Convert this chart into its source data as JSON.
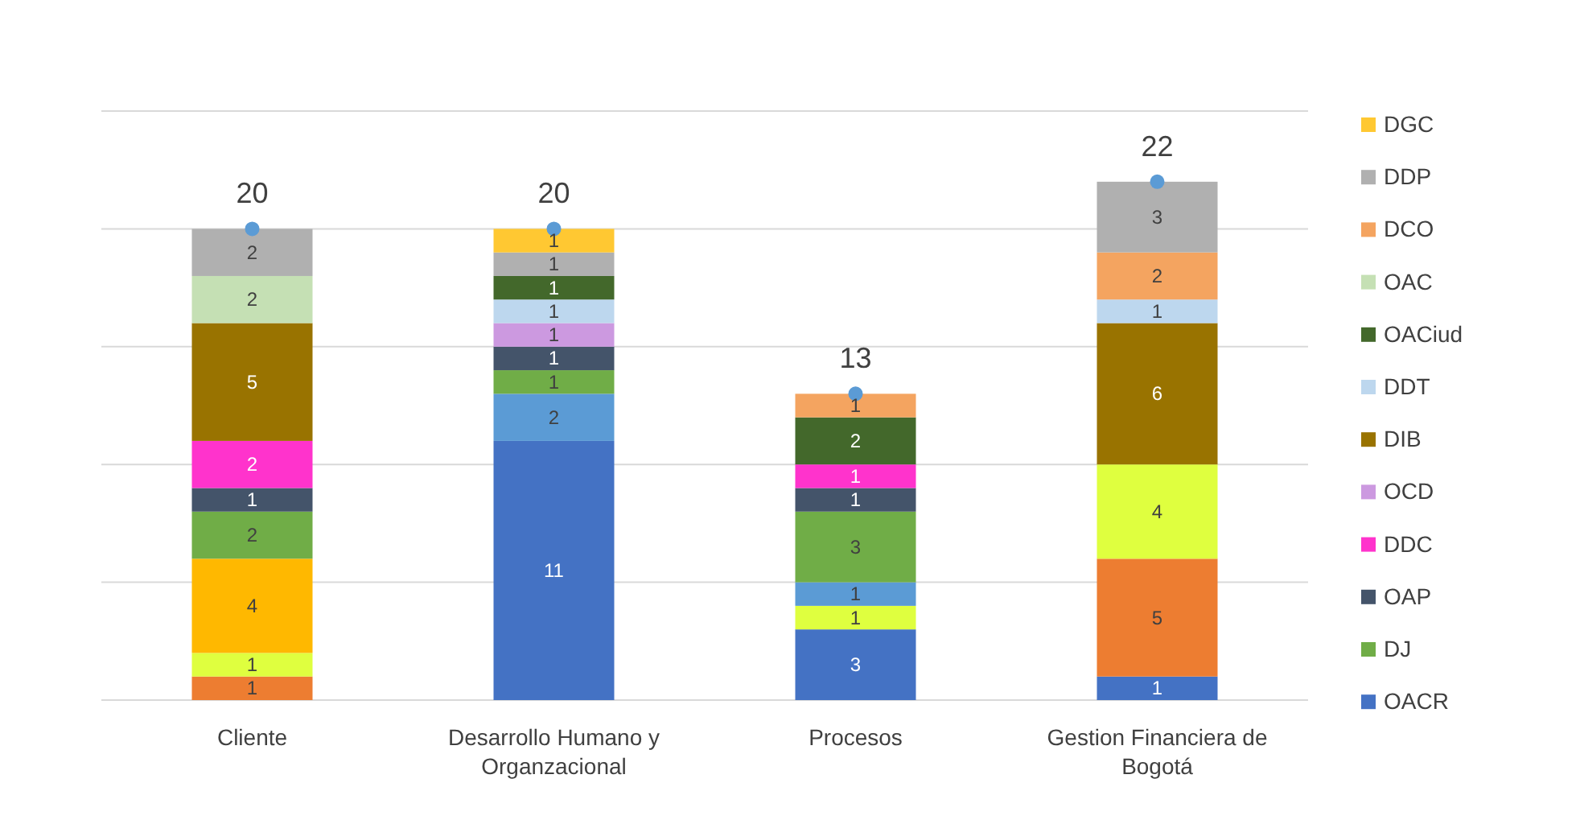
{
  "chart_data": {
    "type": "bar",
    "stacked": true,
    "categories": [
      "Cliente",
      "Desarrollo Humano y Organzacional",
      "Procesos",
      "Gestion Financiera de Bogotá"
    ],
    "ylim": [
      0,
      25
    ],
    "yticks": [
      {
        "value": 0,
        "label": null
      },
      {
        "value": 5,
        "label": null
      },
      {
        "value": 10,
        "label": null
      },
      {
        "value": 15,
        "label": null
      },
      {
        "value": 20,
        "label": null
      },
      {
        "value": 25,
        "label": null
      }
    ],
    "tick_labels": "x",
    "grid": "y",
    "legend": "right",
    "data_labels": true,
    "series": [
      {
        "name": "OACR",
        "color": "#4472c4",
        "values": [
          null,
          11,
          3,
          1
        ]
      },
      {
        "color": "#ed7d31",
        "values": [
          1,
          null,
          null,
          5
        ]
      },
      {
        "color": "#dfff3f",
        "values": [
          1,
          null,
          1,
          4
        ]
      },
      {
        "color": "#ffb800",
        "values": [
          4,
          null,
          null,
          null
        ]
      },
      {
        "color": "#5b9bd5",
        "values": [
          null,
          2,
          1,
          null
        ]
      },
      {
        "name": "DJ",
        "color": "#70ad47",
        "values": [
          2,
          1,
          3,
          null
        ]
      },
      {
        "name": "OAP",
        "color": "#44546a",
        "values": [
          1,
          1,
          1,
          null
        ]
      },
      {
        "name": "DDC",
        "color": "#ff33cc",
        "values": [
          2,
          null,
          1,
          null
        ]
      },
      {
        "name": "OCD",
        "color": "#cc99e0",
        "values": [
          null,
          1,
          null,
          null
        ]
      },
      {
        "name": "DIB",
        "color": "#997300",
        "values": [
          5,
          null,
          null,
          6
        ]
      },
      {
        "name": "DDT",
        "color": "#bdd7ee",
        "values": [
          null,
          1,
          null,
          1
        ]
      },
      {
        "name": "OACiud",
        "color": "#43682b",
        "values": [
          null,
          1,
          2,
          null
        ]
      },
      {
        "name": "OAC",
        "color": "#c5e0b4",
        "values": [
          2,
          null,
          null,
          null
        ]
      },
      {
        "name": "DCO",
        "color": "#f4a460",
        "values": [
          null,
          null,
          1,
          2
        ]
      },
      {
        "name": "DDP",
        "color": "#b0b0b0",
        "values": [
          2,
          1,
          null,
          3
        ]
      },
      {
        "name": "DGC",
        "color": "#ffc832",
        "values": [
          null,
          1,
          null,
          null
        ]
      },
      {
        "type": "scatter",
        "color": "#5b9bd5",
        "marker": "circle",
        "values": [
          20,
          20,
          13,
          22
        ]
      }
    ]
  }
}
